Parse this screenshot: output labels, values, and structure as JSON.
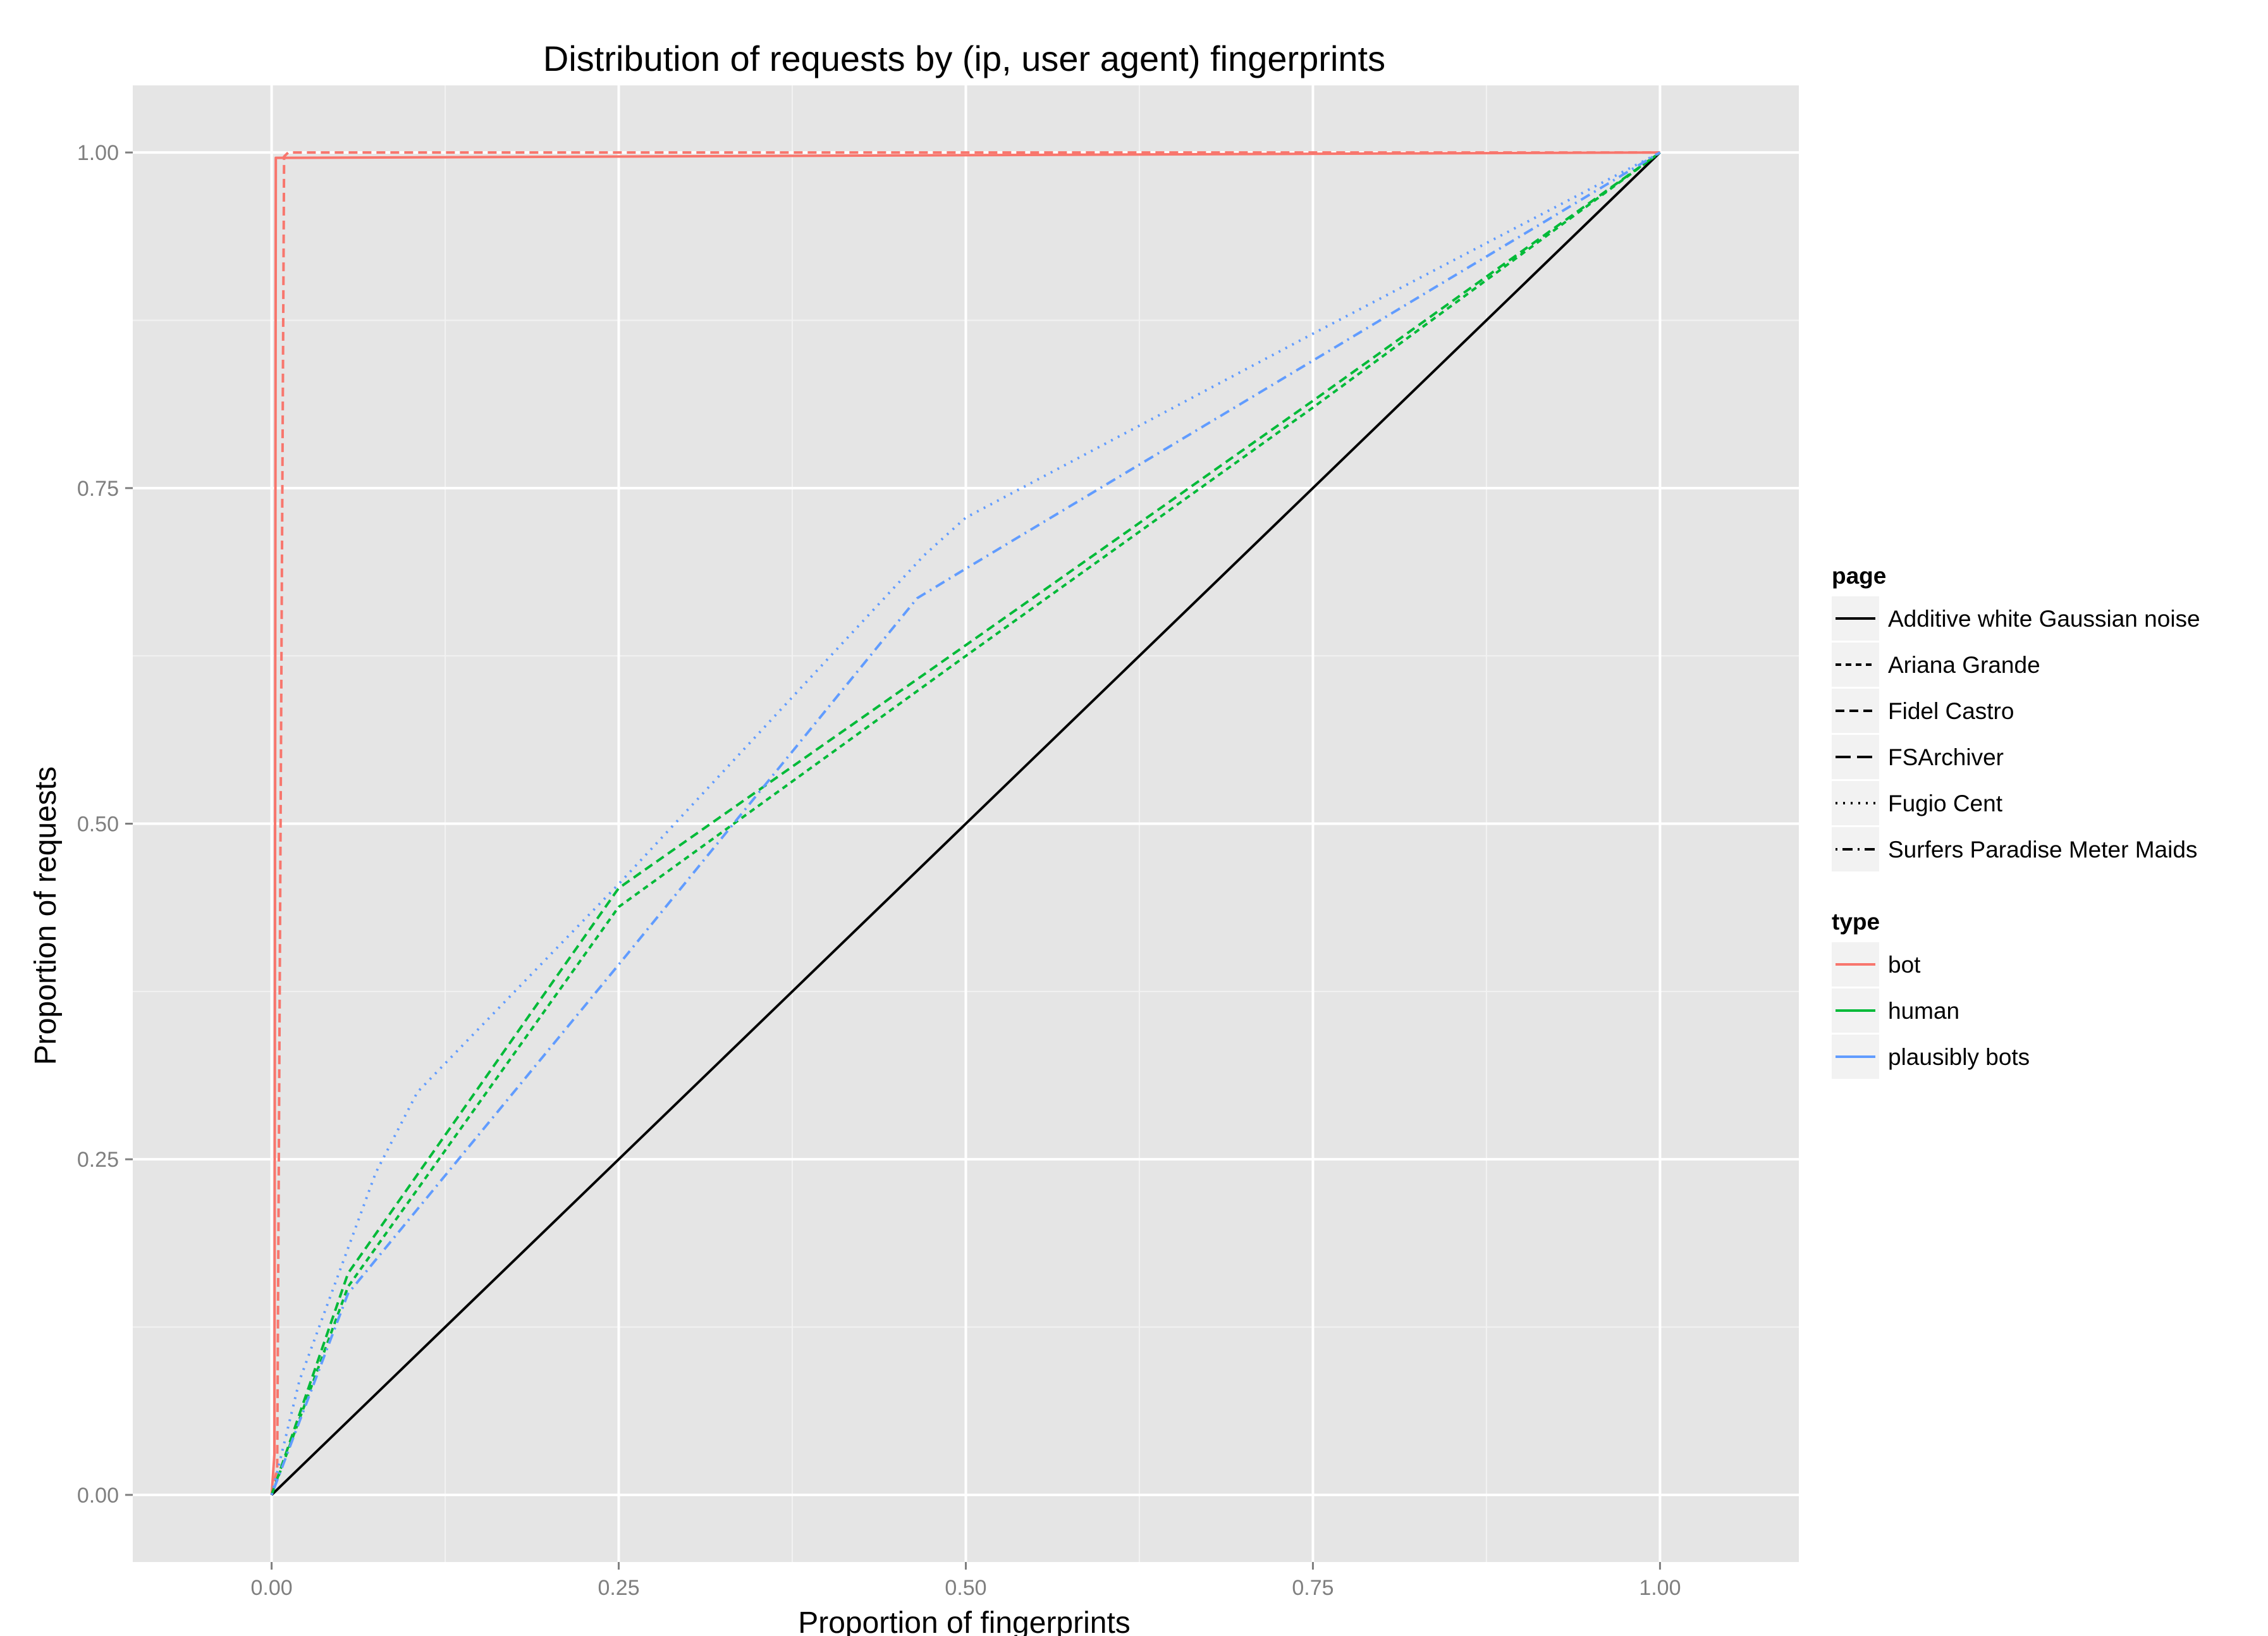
{
  "chart_data": {
    "type": "line",
    "title": "Distribution of requests by (ip, user agent) fingerprints",
    "xlabel": "Proportion of fingerprints",
    "ylabel": "Proportion of requests",
    "xlim": [
      -0.1,
      1.1
    ],
    "ylim": [
      -0.05,
      1.05
    ],
    "x_ticks": [
      0,
      0.25,
      0.5,
      0.75,
      1
    ],
    "x_tick_labels": [
      "0.00",
      "0.25",
      "0.50",
      "0.75",
      "1.00"
    ],
    "y_ticks": [
      0,
      0.25,
      0.5,
      0.75,
      1
    ],
    "y_tick_labels": [
      "0.00",
      "0.25",
      "0.50",
      "0.75",
      "1.00"
    ],
    "grid": true,
    "panel_background": "#e5e5e5",
    "grid_color": "#ffffff",
    "legend_position": "right",
    "legend": {
      "page": {
        "title": "page",
        "entries": [
          {
            "label": "Additive white Gaussian noise",
            "linetype": "solid"
          },
          {
            "label": "Ariana Grande",
            "linetype": "dashed-short"
          },
          {
            "label": "Fidel Castro",
            "linetype": "dashed"
          },
          {
            "label": "FSArchiver",
            "linetype": "longdash"
          },
          {
            "label": "Fugio Cent",
            "linetype": "dotted"
          },
          {
            "label": "Surfers Paradise Meter Maids",
            "linetype": "dotdash"
          }
        ]
      },
      "type": {
        "title": "type",
        "entries": [
          {
            "label": "bot",
            "color": "#f8766d"
          },
          {
            "label": "human",
            "color": "#00ba38"
          },
          {
            "label": "plausibly bots",
            "color": "#619cff"
          }
        ]
      }
    },
    "series": [
      {
        "page": "Additive white Gaussian noise",
        "type": "bot",
        "color": "#000000",
        "linetype": "solid",
        "x": [
          0,
          1
        ],
        "y": [
          0,
          1
        ]
      },
      {
        "page": "FSArchiver",
        "type": "bot",
        "color": "#f8766d",
        "linetype": "solid",
        "x": [
          0,
          0.002,
          0.003,
          0.5,
          1
        ],
        "y": [
          0,
          0.03,
          0.996,
          0.998,
          1
        ]
      },
      {
        "page": "Fidel Castro",
        "type": "bot",
        "color": "#f8766d",
        "linetype": "dashed",
        "x": [
          0,
          0.004,
          0.009,
          0.012,
          0.5,
          1
        ],
        "y": [
          0,
          0.02,
          0.997,
          1.0,
          1.0,
          1
        ]
      },
      {
        "page": "Ariana Grande",
        "type": "human",
        "color": "#00ba38",
        "linetype": "dashed-short",
        "x": [
          0,
          0.055,
          0.25,
          0.5,
          0.75,
          1
        ],
        "y": [
          0,
          0.155,
          0.438,
          0.625,
          0.81,
          1
        ]
      },
      {
        "page": "Fidel Castro",
        "type": "human",
        "color": "#00ba38",
        "linetype": "dashed",
        "x": [
          0,
          0.055,
          0.25,
          0.5,
          0.75,
          1
        ],
        "y": [
          0,
          0.165,
          0.452,
          0.633,
          0.815,
          1
        ]
      },
      {
        "page": "Fugio Cent",
        "type": "plausibly bots",
        "color": "#619cff",
        "linetype": "dotted",
        "x": [
          0,
          0.02,
          0.075,
          0.105,
          0.25,
          0.47,
          0.5,
          0.75,
          1
        ],
        "y": [
          0,
          0.085,
          0.24,
          0.3,
          0.455,
          0.7,
          0.728,
          0.865,
          1
        ]
      },
      {
        "page": "Surfers Paradise Meter Maids",
        "type": "plausibly bots",
        "color": "#619cff",
        "linetype": "dotdash",
        "x": [
          0,
          0.055,
          0.25,
          0.465,
          0.5,
          0.75,
          1
        ],
        "y": [
          0,
          0.15,
          0.395,
          0.668,
          0.69,
          0.845,
          1
        ]
      }
    ]
  }
}
